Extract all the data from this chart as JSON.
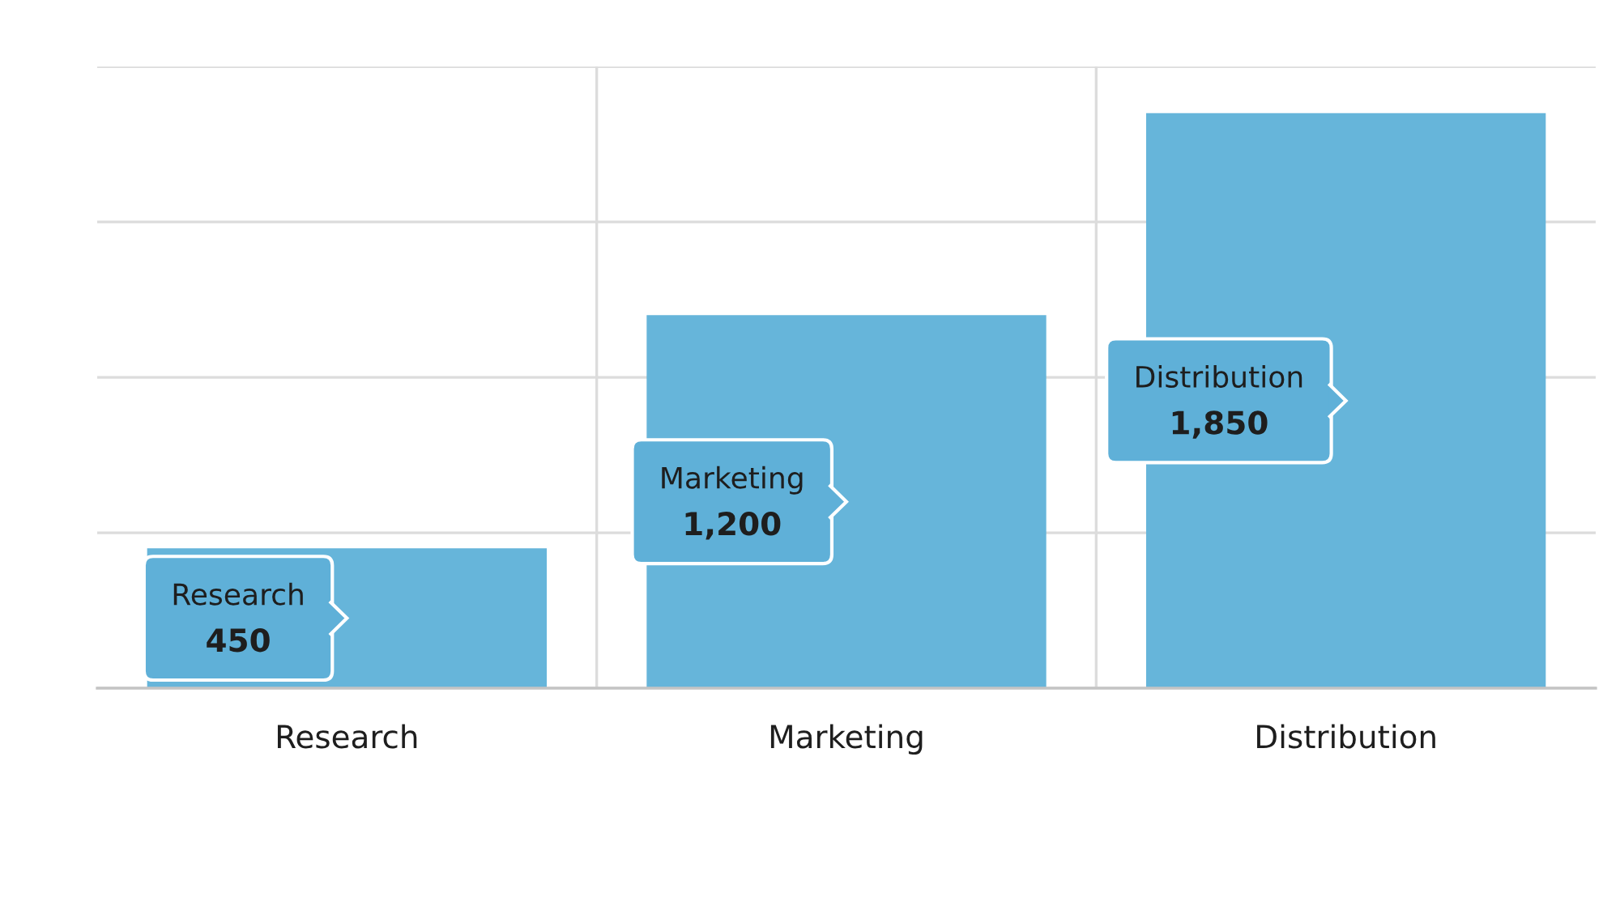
{
  "chart_data": {
    "type": "bar",
    "categories": [
      "Research",
      "Marketing",
      "Distribution"
    ],
    "values": [
      450,
      1200,
      1850
    ],
    "color": "#66b5da",
    "value_labels": [
      "450",
      "1,200",
      "1,850"
    ],
    "ylim": [
      0,
      2000
    ],
    "yticks": [
      {
        "value": 0,
        "label": null
      },
      {
        "value": 500,
        "label": null
      },
      {
        "value": 1000,
        "label": null
      },
      {
        "value": 1500,
        "label": null
      },
      {
        "value": 2000,
        "label": null
      }
    ],
    "tick_labels": "x",
    "grid": true
  }
}
